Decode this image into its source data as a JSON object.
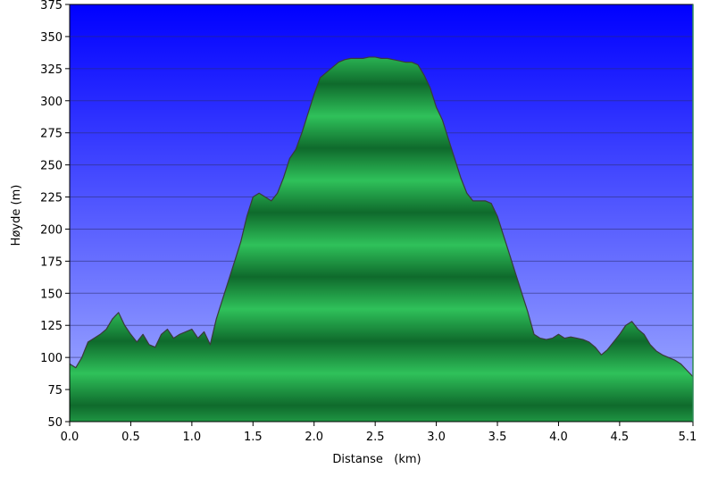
{
  "chart_data": {
    "type": "area",
    "title": "",
    "xlabel": "Distanse   (km)",
    "ylabel": "Høyde (m)",
    "xlim": [
      0,
      5.1
    ],
    "ylim": [
      50,
      375
    ],
    "x_ticks": [
      "0.0",
      "0.5",
      "1.0",
      "1.5",
      "2.0",
      "2.5",
      "3.0",
      "3.5",
      "4.0",
      "4.5",
      "5.1"
    ],
    "y_ticks": [
      "50",
      "75",
      "100",
      "125",
      "150",
      "175",
      "200",
      "225",
      "250",
      "275",
      "300",
      "325",
      "350",
      "375"
    ],
    "grid": true,
    "colors": {
      "sky_top": "#0000ff",
      "sky_bottom": "#a8b4ff",
      "fill_light": "#2fc15a",
      "fill_dark": "#0f6a2c",
      "outline": "#3a3a3a",
      "gridline": "#2b2b6b"
    },
    "series": [
      {
        "x": [
          0.0,
          0.05,
          0.1,
          0.15,
          0.2,
          0.25,
          0.3,
          0.35,
          0.4,
          0.45,
          0.5,
          0.55,
          0.6,
          0.65,
          0.7,
          0.75,
          0.8,
          0.85,
          0.9,
          0.95,
          1.0,
          1.05,
          1.1,
          1.15,
          1.2,
          1.25,
          1.3,
          1.35,
          1.4,
          1.45,
          1.5,
          1.55,
          1.6,
          1.65,
          1.7,
          1.75,
          1.8,
          1.85,
          1.9,
          1.95,
          2.0,
          2.05,
          2.1,
          2.15,
          2.2,
          2.25,
          2.3,
          2.35,
          2.4,
          2.45,
          2.5,
          2.55,
          2.6,
          2.65,
          2.7,
          2.75,
          2.8,
          2.85,
          2.9,
          2.95,
          3.0,
          3.05,
          3.1,
          3.15,
          3.2,
          3.25,
          3.3,
          3.35,
          3.4,
          3.45,
          3.5,
          3.55,
          3.6,
          3.65,
          3.7,
          3.75,
          3.8,
          3.85,
          3.9,
          3.95,
          4.0,
          4.05,
          4.1,
          4.15,
          4.2,
          4.25,
          4.3,
          4.35,
          4.4,
          4.45,
          4.5,
          4.55,
          4.6,
          4.65,
          4.7,
          4.75,
          4.8,
          4.85,
          4.9,
          4.95,
          5.0,
          5.05,
          5.1
        ],
        "values": [
          95,
          92,
          100,
          112,
          115,
          118,
          122,
          130,
          135,
          125,
          118,
          112,
          118,
          110,
          108,
          118,
          122,
          115,
          118,
          120,
          122,
          115,
          120,
          110,
          130,
          145,
          160,
          175,
          190,
          210,
          225,
          228,
          225,
          222,
          228,
          240,
          255,
          262,
          275,
          290,
          305,
          318,
          322,
          326,
          330,
          332,
          333,
          333,
          333,
          334,
          334,
          333,
          333,
          332,
          331,
          330,
          330,
          328,
          320,
          310,
          295,
          285,
          270,
          255,
          240,
          228,
          222,
          222,
          222,
          220,
          210,
          195,
          180,
          165,
          150,
          135,
          118,
          115,
          114,
          115,
          118,
          115,
          116,
          115,
          114,
          112,
          108,
          102,
          106,
          112,
          118,
          125,
          128,
          122,
          118,
          110,
          105,
          102,
          100,
          98,
          95,
          90,
          85
        ]
      }
    ]
  }
}
